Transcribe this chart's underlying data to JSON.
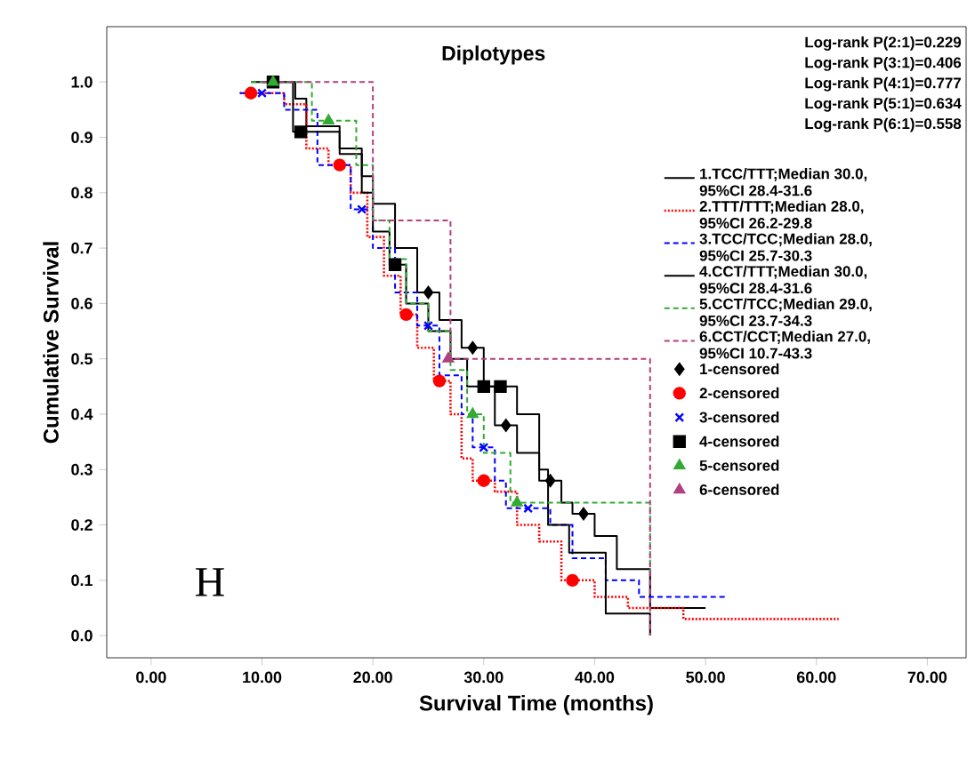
{
  "chart_data": {
    "type": "step",
    "title": "Diplotypes",
    "xlabel": "Survival Time (months)",
    "ylabel": "Cumulative Survival",
    "annotations": [
      "Log-rank P(2:1)=0.229",
      "Log-rank P(3:1)=0.406",
      "Log-rank P(4:1)=0.777",
      "Log-rank P(5:1)=0.634",
      "Log-rank P(6:1)=0.558",
      "H"
    ],
    "xlim": [
      -4,
      73.5
    ],
    "ylim": [
      -0.04,
      1.1
    ],
    "xticks": [
      {
        "value": 0,
        "label": "0.00"
      },
      {
        "value": 10,
        "label": "10.00"
      },
      {
        "value": 20,
        "label": "20.00"
      },
      {
        "value": 30,
        "label": "30.00"
      },
      {
        "value": 40,
        "label": "40.00"
      },
      {
        "value": 50,
        "label": "50.00"
      },
      {
        "value": 60,
        "label": "60.00"
      },
      {
        "value": 70,
        "label": "70.00"
      }
    ],
    "yticks": [
      {
        "value": 0,
        "label": "0.0"
      },
      {
        "value": 0.1,
        "label": "0.1"
      },
      {
        "value": 0.2,
        "label": "0.2"
      },
      {
        "value": 0.3,
        "label": "0.3"
      },
      {
        "value": 0.4,
        "label": "0.4"
      },
      {
        "value": 0.5,
        "label": "0.5"
      },
      {
        "value": 0.6,
        "label": "0.6"
      },
      {
        "value": 0.7,
        "label": "0.7"
      },
      {
        "value": 0.8,
        "label": "0.8"
      },
      {
        "value": 0.9,
        "label": "0.9"
      },
      {
        "value": 1.0,
        "label": "1.0"
      }
    ],
    "legend": "right",
    "series": [
      {
        "name": "1.TCC/TTT;Median 30.0, 95%CI 28.4-31.6",
        "color": "#000000",
        "line_style": "solid",
        "x": [
          9,
          13,
          14,
          17,
          19,
          20,
          22,
          24,
          26,
          28,
          30,
          31,
          33,
          35,
          37,
          38,
          40,
          42,
          45,
          50
        ],
        "values": [
          1,
          0.97,
          0.92,
          0.88,
          0.83,
          0.78,
          0.7,
          0.62,
          0.57,
          0.52,
          0.45,
          0.38,
          0.33,
          0.28,
          0.24,
          0.22,
          0.18,
          0.12,
          0.05,
          0.05
        ]
      },
      {
        "name": "2.TTT/TTT;Median 28.0, 95%CI 26.2-29.8",
        "color": "#ff0000",
        "line_style": "dotted",
        "x": [
          8,
          12,
          14,
          16,
          18,
          19.5,
          21,
          22.5,
          24,
          25.5,
          27,
          28,
          29,
          31,
          33,
          35,
          37,
          40,
          43,
          48,
          62
        ],
        "values": [
          0.98,
          0.96,
          0.88,
          0.85,
          0.8,
          0.72,
          0.65,
          0.58,
          0.52,
          0.46,
          0.4,
          0.32,
          0.28,
          0.26,
          0.2,
          0.17,
          0.1,
          0.07,
          0.05,
          0.03,
          0.03
        ]
      },
      {
        "name": "3.TCC/TCC;Median 28.0, 95%CI 25.7-30.3",
        "color": "#0000ff",
        "line_style": "dashed",
        "x": [
          8,
          12,
          15,
          18,
          20,
          22,
          24,
          26,
          28,
          29,
          31,
          32,
          36,
          38,
          41,
          44,
          52
        ],
        "values": [
          0.98,
          0.95,
          0.85,
          0.77,
          0.7,
          0.62,
          0.56,
          0.47,
          0.4,
          0.34,
          0.28,
          0.23,
          0.2,
          0.14,
          0.1,
          0.07,
          0.07
        ]
      },
      {
        "name": "4.CCT/TTT;Median 30.0, 95%CI 28.4-31.6",
        "color": "#000000",
        "line_style": "solid",
        "x": [
          10,
          12.8,
          17,
          19,
          20,
          21.5,
          23,
          25,
          27,
          28.5,
          33,
          35,
          35.8,
          37.7,
          41,
          45
        ],
        "values": [
          1,
          0.91,
          0.87,
          0.8,
          0.73,
          0.67,
          0.6,
          0.55,
          0.5,
          0.45,
          0.4,
          0.3,
          0.2,
          0.15,
          0.04,
          0
        ]
      },
      {
        "name": "5.CCT/TCC;Median 29.0, 95%CI 23.7-34.3",
        "color": "#33aa33",
        "line_style": "dashed",
        "x": [
          9,
          14.5,
          18.5,
          20,
          21.5,
          23,
          25,
          27,
          28.5,
          30,
          32.4,
          45
        ],
        "values": [
          1,
          0.93,
          0.85,
          0.75,
          0.68,
          0.6,
          0.55,
          0.48,
          0.4,
          0.33,
          0.24,
          0.115
        ]
      },
      {
        "name": "6.CCT/CCT;Median 27.0, 95%CI 10.7-43.3",
        "color": "#b04080",
        "line_style": "dashed",
        "x": [
          10,
          20,
          27,
          45
        ],
        "values": [
          1,
          0.75,
          0.5,
          0
        ]
      },
      {
        "name": "1-censored",
        "type": "scatter",
        "color": "#000000",
        "marker": "diamond",
        "x": [
          25,
          29,
          32,
          36,
          39
        ],
        "values": [
          0.62,
          0.52,
          0.38,
          0.28,
          0.22
        ]
      },
      {
        "name": "2-censored",
        "type": "scatter",
        "color": "#ff0000",
        "marker": "circle",
        "x": [
          9,
          17,
          23,
          26,
          30,
          38
        ],
        "values": [
          0.98,
          0.85,
          0.58,
          0.46,
          0.28,
          0.1
        ]
      },
      {
        "name": "3-censored",
        "type": "scatter",
        "color": "#0000ff",
        "marker": "cross",
        "x": [
          10,
          19,
          25,
          30,
          34
        ],
        "values": [
          0.98,
          0.77,
          0.56,
          0.34,
          0.23
        ]
      },
      {
        "name": "4-censored",
        "type": "scatter",
        "color": "#000000",
        "marker": "square",
        "x": [
          11,
          13.5,
          22,
          30,
          31.5
        ],
        "values": [
          1,
          0.91,
          0.67,
          0.45,
          0.45
        ]
      },
      {
        "name": "5-censored",
        "type": "scatter",
        "color": "#33aa33",
        "marker": "triangle",
        "x": [
          11,
          16,
          29,
          33
        ],
        "values": [
          1,
          0.93,
          0.4,
          0.24
        ]
      },
      {
        "name": "6-censored",
        "type": "scatter",
        "color": "#b04080",
        "marker": "triangle",
        "x": [
          26.8
        ],
        "values": [
          0.5
        ]
      }
    ]
  }
}
